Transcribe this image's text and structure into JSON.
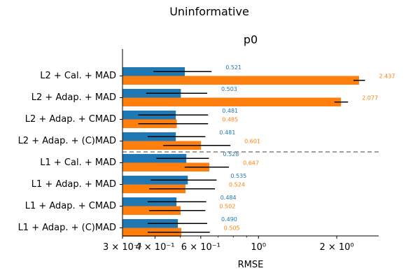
{
  "figure": {
    "suptitle": "Uninformative"
  },
  "chart_data": {
    "type": "bar",
    "orientation": "horizontal",
    "title": "p0",
    "xlabel": "RMSE",
    "ylabel": "",
    "xscale": "log",
    "xlim": [
      0.3,
      2.9
    ],
    "xticks": [
      {
        "value": 0.3,
        "label": "3 × 10⁻¹"
      },
      {
        "value": 0.4,
        "label": "4 × 10⁻¹"
      },
      {
        "value": 0.6,
        "label": "6 × 10⁻¹"
      },
      {
        "value": 1.0,
        "label": "10⁰"
      },
      {
        "value": 2.0,
        "label": "2 × 10⁰"
      }
    ],
    "categories": [
      "L2 + Cal. + MAD",
      "L2 + Adap. + MAD",
      "L2 + Adap. + CMAD",
      "L2 + Adap. + (C)MAD",
      "L1 + Cal. + MAD",
      "L1 + Adap. + MAD",
      "L1 + Adap. + CMAD",
      "L1 + Adap. + (C)MAD"
    ],
    "series": [
      {
        "color": "#1f77b4",
        "values": [
          0.521,
          0.503,
          0.481,
          0.481,
          0.528,
          0.535,
          0.484,
          0.49
        ],
        "labels": [
          "0.521",
          "0.503",
          "0.481",
          "0.481",
          "0.528",
          "0.535",
          "0.484",
          "0.490"
        ],
        "err_low": [
          0.395,
          0.37,
          0.345,
          0.375,
          0.405,
          0.385,
          0.375,
          0.375
        ],
        "err_high": [
          0.66,
          0.635,
          0.64,
          0.625,
          0.645,
          0.69,
          0.63,
          0.635
        ]
      },
      {
        "color": "#ff7f0e",
        "values": [
          2.437,
          2.077,
          0.485,
          0.601,
          0.647,
          0.524,
          0.502,
          0.505
        ],
        "labels": [
          "2.437",
          "2.077",
          "0.485",
          "0.601",
          "0.647",
          "0.524",
          "0.502",
          "0.505"
        ],
        "err_low": [
          2.32,
          1.96,
          0.345,
          0.43,
          0.52,
          0.38,
          0.38,
          0.375
        ],
        "err_high": [
          2.57,
          2.21,
          0.64,
          0.78,
          0.77,
          0.68,
          0.625,
          0.65
        ]
      }
    ],
    "separator": {
      "between": [
        3,
        4
      ],
      "style": "dashed",
      "color": "#808080"
    },
    "grid": false
  }
}
